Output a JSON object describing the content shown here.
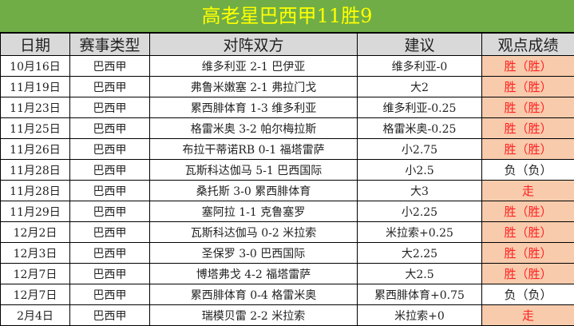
{
  "title": "高老星巴西甲11胜9",
  "headers": [
    "日期",
    "赛事类型",
    "对阵双方",
    "建议",
    "观点成绩"
  ],
  "colors": {
    "title_bg": "#70ad47",
    "title_text": "#ffff00",
    "header_bg": "#d9d9d9",
    "win_bg": "#f8cbad",
    "win_text": "#ff2020"
  },
  "rows": [
    {
      "date": "10月16日",
      "league": "巴西甲",
      "match": "维多利亚 2-1 巴伊亚",
      "tip": "维多利亚-0",
      "result": "胜（胜）",
      "status": "win"
    },
    {
      "date": "11月19日",
      "league": "巴西甲",
      "match": "弗鲁米嫩塞 2-1 弗拉门戈",
      "tip": "大2",
      "result": "胜（胜）",
      "status": "win"
    },
    {
      "date": "11月23日",
      "league": "巴西甲",
      "match": "累西腓体育 1-3 维多利亚",
      "tip": "维多利亚-0.25",
      "result": "胜（胜）",
      "status": "win"
    },
    {
      "date": "11月25日",
      "league": "巴西甲",
      "match": "格雷米奥 3-2 帕尔梅拉斯",
      "tip": "格雷米奥-0.25",
      "result": "胜（胜）",
      "status": "win"
    },
    {
      "date": "11月26日",
      "league": "巴西甲",
      "match": "布拉干蒂诺RB 0-1 福塔雷萨",
      "tip": "小2.75",
      "result": "胜（胜）",
      "status": "win"
    },
    {
      "date": "11月28日",
      "league": "巴西甲",
      "match": "瓦斯科达伽马 5-1 巴西国际",
      "tip": "小2.5",
      "result": "负（负）",
      "status": "loss"
    },
    {
      "date": "11月28日",
      "league": "巴西甲",
      "match": "桑托斯 3-0 累西腓体育",
      "tip": "大3",
      "result": "走",
      "status": "win"
    },
    {
      "date": "11月29日",
      "league": "巴西甲",
      "match": "塞阿拉 1-1 克鲁塞罗",
      "tip": "小2.25",
      "result": "胜（胜）",
      "status": "win"
    },
    {
      "date": "12月2日",
      "league": "巴西甲",
      "match": "瓦斯科达伽马 0-2 米拉索",
      "tip": "米拉索+0.25",
      "result": "胜（胜）",
      "status": "win"
    },
    {
      "date": "12月3日",
      "league": "巴西甲",
      "match": "圣保罗 3-0 巴西国际",
      "tip": "大2.25",
      "result": "胜（胜）",
      "status": "win"
    },
    {
      "date": "12月7日",
      "league": "巴西甲",
      "match": "博塔弗戈 4-2 福塔雷萨",
      "tip": "大2.5",
      "result": "胜（胜）",
      "status": "win"
    },
    {
      "date": "12月7日",
      "league": "巴西甲",
      "match": "累西腓体育 0-4 格雷米奥",
      "tip": "累西腓体育+0.75",
      "result": "负（负）",
      "status": "loss"
    },
    {
      "date": "2月4日",
      "league": "巴西甲",
      "match": "瑞模贝雷 2-2 米拉索",
      "tip": "米拉索+0",
      "result": "走",
      "status": "win"
    }
  ]
}
